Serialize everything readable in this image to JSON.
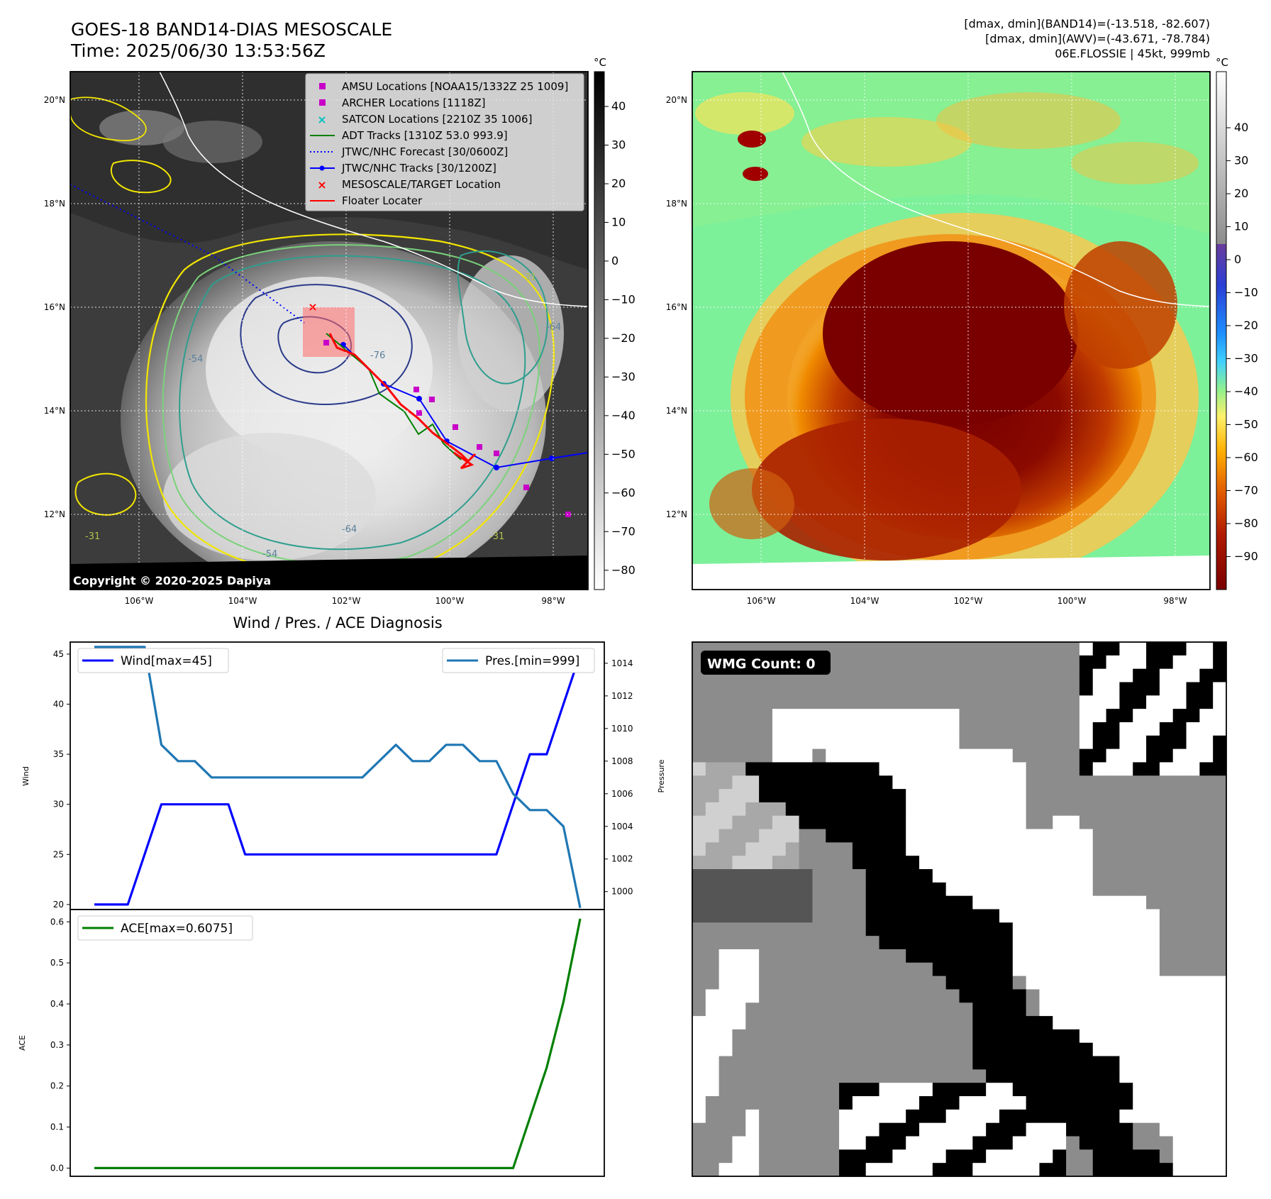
{
  "header": {
    "title_line1": "GOES-18 BAND14-DIAS MESOSCALE",
    "title_line2": "Time: 2025/06/30 13:53:56Z",
    "info_line1": "[dmax, dmin](BAND14)=(-13.518, -82.607)",
    "info_line2": "[dmax, dmin](AWV)=(-43.671, -78.784)",
    "info_line3": "06E.FLOSSIE | 45kt, 999mb"
  },
  "copyright": "Copyright © 2020-2025 Dapiya",
  "map": {
    "lon_ticks": [
      "106°W",
      "104°W",
      "102°W",
      "100°W",
      "98°W"
    ],
    "lat_ticks": [
      "20°N",
      "18°N",
      "16°N",
      "14°N",
      "12°N"
    ],
    "legend": [
      {
        "label": "AMSU Locations [NOAA15/1332Z 25 1009]",
        "marker": "square",
        "color": "#c800c8"
      },
      {
        "label": "ARCHER Locations [1118Z]",
        "marker": "square",
        "color": "#c800c8"
      },
      {
        "label": "SATCON Locations [2210Z 35 1006]",
        "marker": "x",
        "color": "#00bfbf"
      },
      {
        "label": "ADT Tracks [1310Z 53.0 993.9]",
        "marker": "line",
        "color": "#008000"
      },
      {
        "label": "JTWC/NHC Forecast [30/0600Z]",
        "marker": "dotted",
        "color": "#0000ff"
      },
      {
        "label": "JTWC/NHC Tracks [30/1200Z]",
        "marker": "line-dot",
        "color": "#0000ff"
      },
      {
        "label": "MESOSCALE/TARGET Location",
        "marker": "x",
        "color": "#ff0000"
      },
      {
        "label": "Floater Locater",
        "marker": "line",
        "color": "#ff0000"
      }
    ],
    "contour_labels": [
      "-76",
      "-64",
      "-54",
      "-31",
      "-31",
      "-64",
      "-54",
      "-31"
    ]
  },
  "colorbar_left": {
    "unit": "°C",
    "ticks": [
      "40",
      "30",
      "20",
      "10",
      "0",
      "−10",
      "−20",
      "−30",
      "−40",
      "−50",
      "−60",
      "−70",
      "−80"
    ]
  },
  "colorbar_right": {
    "unit": "°C",
    "ticks": [
      "40",
      "30",
      "20",
      "10",
      "0",
      "−10",
      "−20",
      "−30",
      "−40",
      "−50",
      "−60",
      "−70",
      "−80",
      "−90"
    ]
  },
  "diag": {
    "title": "Wind / Pres. / ACE Diagnosis",
    "wind_ylabel": "Wind",
    "pres_ylabel": "Pressure",
    "ace_ylabel": "ACE",
    "wind_legend": "Wind[max=45]",
    "pres_legend": "Pres.[min=999]",
    "ace_legend": "ACE[max=0.6075]",
    "wind_ticks": [
      "45",
      "40",
      "35",
      "30",
      "25",
      "20"
    ],
    "pres_ticks": [
      "1014",
      "1012",
      "1010",
      "1008",
      "1006",
      "1004",
      "1002",
      "1000"
    ],
    "ace_ticks": [
      "0.6",
      "0.5",
      "0.4",
      "0.3",
      "0.2",
      "0.1",
      "0.0"
    ]
  },
  "wmg": {
    "label": "WMG Count: 0"
  },
  "chart_data": [
    {
      "type": "line",
      "title": "Wind / Pres. / ACE Diagnosis",
      "ylabel": "Wind",
      "ylim": [
        19.5,
        46.2
      ],
      "x": [
        0,
        1,
        2,
        3,
        4,
        5,
        6,
        7,
        8,
        9,
        10,
        11,
        12,
        13,
        14,
        15,
        16,
        17,
        18,
        19,
        20,
        21,
        22,
        23,
        24,
        25,
        26,
        27,
        28,
        29
      ],
      "series": [
        {
          "name": "Wind[max=45]",
          "color": "#0000ff",
          "values": [
            20,
            20,
            20,
            25,
            30,
            30,
            30,
            30,
            30,
            25,
            25,
            25,
            25,
            25,
            25,
            25,
            25,
            25,
            25,
            25,
            25,
            25,
            25,
            25,
            25,
            30,
            35,
            35,
            40,
            45
          ]
        }
      ]
    },
    {
      "type": "line",
      "ylabel": "Pressure",
      "ylim": [
        998.9,
        1015.3
      ],
      "x": [
        0,
        1,
        2,
        3,
        4,
        5,
        6,
        7,
        8,
        9,
        10,
        11,
        12,
        13,
        14,
        15,
        16,
        17,
        18,
        19,
        20,
        21,
        22,
        23,
        24,
        25,
        26,
        27,
        28,
        29
      ],
      "series": [
        {
          "name": "Pres.[min=999]",
          "color": "#1f77b4",
          "values": [
            1015,
            1015,
            1015,
            1015,
            1009,
            1008,
            1008,
            1007,
            1007,
            1007,
            1007,
            1007,
            1007,
            1007,
            1007,
            1007,
            1007,
            1008,
            1009,
            1008,
            1008,
            1009,
            1009,
            1008,
            1008,
            1006,
            1005,
            1005,
            1004,
            999
          ]
        }
      ]
    },
    {
      "type": "line",
      "ylabel": "ACE",
      "ylim": [
        -0.02,
        0.63
      ],
      "x": [
        0,
        1,
        2,
        3,
        4,
        5,
        6,
        7,
        8,
        9,
        10,
        11,
        12,
        13,
        14,
        15,
        16,
        17,
        18,
        19,
        20,
        21,
        22,
        23,
        24,
        25,
        26,
        27,
        28,
        29
      ],
      "series": [
        {
          "name": "ACE[max=0.6075]",
          "color": "#008000",
          "values": [
            0,
            0,
            0,
            0,
            0,
            0,
            0,
            0,
            0,
            0,
            0,
            0,
            0,
            0,
            0,
            0,
            0,
            0,
            0,
            0,
            0,
            0,
            0,
            0,
            0,
            0,
            0.1225,
            0.245,
            0.405,
            0.6075
          ]
        }
      ]
    }
  ]
}
